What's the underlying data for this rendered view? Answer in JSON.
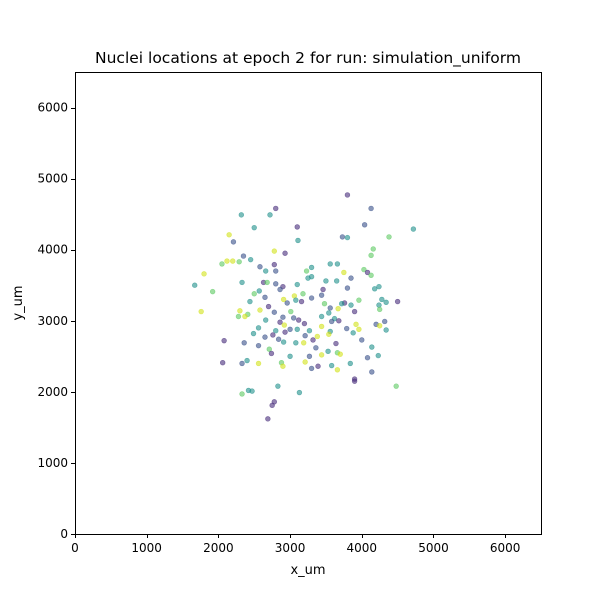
{
  "chart_data": {
    "type": "scatter",
    "title": "Nuclei locations at epoch 2 for run: simulation_uniform",
    "xlabel": "x_um",
    "ylabel": "y_um",
    "xlim": [
      0,
      6500
    ],
    "ylim": [
      0,
      6500
    ],
    "xticks": [
      0,
      1000,
      2000,
      3000,
      4000,
      5000,
      6000
    ],
    "yticks": [
      0,
      1000,
      2000,
      3000,
      4000,
      5000,
      6000
    ],
    "xtick_labels": [
      "0",
      "1000",
      "2000",
      "3000",
      "4000",
      "5000",
      "6000"
    ],
    "ytick_labels": [
      "0",
      "1000",
      "2000",
      "3000",
      "4000",
      "5000",
      "6000"
    ],
    "grid": false,
    "legend": "none",
    "marker_alpha": 0.6,
    "palette": {
      "purple": "#472d7b",
      "blue": "#3b528b",
      "teal": "#21918c",
      "green": "#5ec962",
      "yellow": "#d2e21b"
    },
    "points": [
      {
        "x": 3800,
        "y": 4770,
        "c": "purple"
      },
      {
        "x": 2800,
        "y": 4580,
        "c": "purple"
      },
      {
        "x": 4130,
        "y": 4580,
        "c": "blue"
      },
      {
        "x": 2320,
        "y": 4490,
        "c": "teal"
      },
      {
        "x": 2720,
        "y": 4490,
        "c": "teal"
      },
      {
        "x": 4040,
        "y": 4350,
        "c": "blue"
      },
      {
        "x": 3100,
        "y": 4320,
        "c": "purple"
      },
      {
        "x": 2500,
        "y": 4310,
        "c": "teal"
      },
      {
        "x": 4720,
        "y": 4290,
        "c": "teal"
      },
      {
        "x": 3730,
        "y": 4180,
        "c": "blue"
      },
      {
        "x": 2150,
        "y": 4210,
        "c": "yellow"
      },
      {
        "x": 3800,
        "y": 4170,
        "c": "teal"
      },
      {
        "x": 4380,
        "y": 4180,
        "c": "green"
      },
      {
        "x": 2210,
        "y": 4110,
        "c": "blue"
      },
      {
        "x": 3110,
        "y": 4130,
        "c": "teal"
      },
      {
        "x": 4160,
        "y": 4010,
        "c": "green"
      },
      {
        "x": 2780,
        "y": 3980,
        "c": "yellow"
      },
      {
        "x": 2930,
        "y": 3950,
        "c": "purple"
      },
      {
        "x": 4130,
        "y": 3920,
        "c": "green"
      },
      {
        "x": 2350,
        "y": 3910,
        "c": "blue"
      },
      {
        "x": 2450,
        "y": 3860,
        "c": "teal"
      },
      {
        "x": 2120,
        "y": 3840,
        "c": "yellow"
      },
      {
        "x": 2200,
        "y": 3840,
        "c": "yellow"
      },
      {
        "x": 2290,
        "y": 3830,
        "c": "green"
      },
      {
        "x": 3560,
        "y": 3800,
        "c": "teal"
      },
      {
        "x": 3660,
        "y": 3800,
        "c": "teal"
      },
      {
        "x": 2050,
        "y": 3800,
        "c": "green"
      },
      {
        "x": 2780,
        "y": 3790,
        "c": "purple"
      },
      {
        "x": 2580,
        "y": 3760,
        "c": "blue"
      },
      {
        "x": 3300,
        "y": 3750,
        "c": "teal"
      },
      {
        "x": 4030,
        "y": 3720,
        "c": "green"
      },
      {
        "x": 2800,
        "y": 3700,
        "c": "blue"
      },
      {
        "x": 2660,
        "y": 3700,
        "c": "teal"
      },
      {
        "x": 4080,
        "y": 3680,
        "c": "purple"
      },
      {
        "x": 3230,
        "y": 3700,
        "c": "green"
      },
      {
        "x": 3750,
        "y": 3680,
        "c": "yellow"
      },
      {
        "x": 4130,
        "y": 3640,
        "c": "green"
      },
      {
        "x": 1800,
        "y": 3660,
        "c": "yellow"
      },
      {
        "x": 3300,
        "y": 3620,
        "c": "teal"
      },
      {
        "x": 3850,
        "y": 3600,
        "c": "blue"
      },
      {
        "x": 3250,
        "y": 3600,
        "c": "teal"
      },
      {
        "x": 3500,
        "y": 3560,
        "c": "teal"
      },
      {
        "x": 3650,
        "y": 3560,
        "c": "teal"
      },
      {
        "x": 2630,
        "y": 3540,
        "c": "purple"
      },
      {
        "x": 2330,
        "y": 3540,
        "c": "teal"
      },
      {
        "x": 3100,
        "y": 3510,
        "c": "teal"
      },
      {
        "x": 2800,
        "y": 3520,
        "c": "blue"
      },
      {
        "x": 2680,
        "y": 3540,
        "c": "green"
      },
      {
        "x": 1670,
        "y": 3500,
        "c": "teal"
      },
      {
        "x": 4240,
        "y": 3480,
        "c": "teal"
      },
      {
        "x": 2900,
        "y": 3480,
        "c": "purple"
      },
      {
        "x": 3800,
        "y": 3460,
        "c": "blue"
      },
      {
        "x": 4180,
        "y": 3450,
        "c": "teal"
      },
      {
        "x": 2860,
        "y": 3440,
        "c": "blue"
      },
      {
        "x": 3460,
        "y": 3440,
        "c": "purple"
      },
      {
        "x": 2570,
        "y": 3420,
        "c": "teal"
      },
      {
        "x": 1920,
        "y": 3410,
        "c": "green"
      },
      {
        "x": 2500,
        "y": 3380,
        "c": "green"
      },
      {
        "x": 3180,
        "y": 3380,
        "c": "green"
      },
      {
        "x": 3440,
        "y": 3360,
        "c": "blue"
      },
      {
        "x": 3060,
        "y": 3350,
        "c": "yellow"
      },
      {
        "x": 2650,
        "y": 3330,
        "c": "blue"
      },
      {
        "x": 3300,
        "y": 3320,
        "c": "blue"
      },
      {
        "x": 2910,
        "y": 3300,
        "c": "yellow"
      },
      {
        "x": 3080,
        "y": 3290,
        "c": "teal"
      },
      {
        "x": 4280,
        "y": 3300,
        "c": "teal"
      },
      {
        "x": 3960,
        "y": 3290,
        "c": "green"
      },
      {
        "x": 4500,
        "y": 3270,
        "c": "purple"
      },
      {
        "x": 3160,
        "y": 3270,
        "c": "purple"
      },
      {
        "x": 2440,
        "y": 3270,
        "c": "teal"
      },
      {
        "x": 4340,
        "y": 3260,
        "c": "teal"
      },
      {
        "x": 3760,
        "y": 3250,
        "c": "purple"
      },
      {
        "x": 3480,
        "y": 3240,
        "c": "green"
      },
      {
        "x": 3720,
        "y": 3240,
        "c": "teal"
      },
      {
        "x": 2960,
        "y": 3250,
        "c": "blue"
      },
      {
        "x": 3850,
        "y": 3220,
        "c": "teal"
      },
      {
        "x": 4240,
        "y": 3220,
        "c": "teal"
      },
      {
        "x": 2700,
        "y": 3200,
        "c": "purple"
      },
      {
        "x": 3560,
        "y": 3180,
        "c": "blue"
      },
      {
        "x": 3670,
        "y": 3170,
        "c": "yellow"
      },
      {
        "x": 4250,
        "y": 3160,
        "c": "green"
      },
      {
        "x": 2580,
        "y": 3150,
        "c": "yellow"
      },
      {
        "x": 1760,
        "y": 3130,
        "c": "yellow"
      },
      {
        "x": 2300,
        "y": 3140,
        "c": "yellow"
      },
      {
        "x": 3010,
        "y": 3130,
        "c": "green"
      },
      {
        "x": 3900,
        "y": 3130,
        "c": "purple"
      },
      {
        "x": 2780,
        "y": 3120,
        "c": "blue"
      },
      {
        "x": 3540,
        "y": 3110,
        "c": "teal"
      },
      {
        "x": 2410,
        "y": 3090,
        "c": "green"
      },
      {
        "x": 2370,
        "y": 3060,
        "c": "yellow"
      },
      {
        "x": 3440,
        "y": 3060,
        "c": "teal"
      },
      {
        "x": 2280,
        "y": 3060,
        "c": "green"
      },
      {
        "x": 2900,
        "y": 3050,
        "c": "blue"
      },
      {
        "x": 3050,
        "y": 3040,
        "c": "blue"
      },
      {
        "x": 3620,
        "y": 3030,
        "c": "teal"
      },
      {
        "x": 2660,
        "y": 3010,
        "c": "teal"
      },
      {
        "x": 3120,
        "y": 3010,
        "c": "purple"
      },
      {
        "x": 3680,
        "y": 3000,
        "c": "purple"
      },
      {
        "x": 3580,
        "y": 2990,
        "c": "blue"
      },
      {
        "x": 4320,
        "y": 2990,
        "c": "blue"
      },
      {
        "x": 2860,
        "y": 2980,
        "c": "purple"
      },
      {
        "x": 3200,
        "y": 2960,
        "c": "purple"
      },
      {
        "x": 4200,
        "y": 2950,
        "c": "blue"
      },
      {
        "x": 3920,
        "y": 2950,
        "c": "yellow"
      },
      {
        "x": 2920,
        "y": 2940,
        "c": "yellow"
      },
      {
        "x": 4250,
        "y": 2930,
        "c": "yellow"
      },
      {
        "x": 3440,
        "y": 2920,
        "c": "yellow"
      },
      {
        "x": 2560,
        "y": 2900,
        "c": "teal"
      },
      {
        "x": 3790,
        "y": 2890,
        "c": "blue"
      },
      {
        "x": 3000,
        "y": 2880,
        "c": "blue"
      },
      {
        "x": 3100,
        "y": 2880,
        "c": "teal"
      },
      {
        "x": 3960,
        "y": 2880,
        "c": "yellow"
      },
      {
        "x": 4340,
        "y": 2870,
        "c": "teal"
      },
      {
        "x": 2800,
        "y": 2860,
        "c": "teal"
      },
      {
        "x": 3270,
        "y": 2860,
        "c": "teal"
      },
      {
        "x": 3560,
        "y": 2850,
        "c": "teal"
      },
      {
        "x": 2930,
        "y": 2840,
        "c": "purple"
      },
      {
        "x": 3880,
        "y": 2830,
        "c": "teal"
      },
      {
        "x": 2490,
        "y": 2820,
        "c": "teal"
      },
      {
        "x": 3540,
        "y": 2810,
        "c": "yellow"
      },
      {
        "x": 2760,
        "y": 2800,
        "c": "purple"
      },
      {
        "x": 3210,
        "y": 2790,
        "c": "blue"
      },
      {
        "x": 3380,
        "y": 2780,
        "c": "yellow"
      },
      {
        "x": 2650,
        "y": 2770,
        "c": "blue"
      },
      {
        "x": 2080,
        "y": 2720,
        "c": "purple"
      },
      {
        "x": 2840,
        "y": 2740,
        "c": "blue"
      },
      {
        "x": 3320,
        "y": 2730,
        "c": "purple"
      },
      {
        "x": 4000,
        "y": 2730,
        "c": "blue"
      },
      {
        "x": 2910,
        "y": 2700,
        "c": "teal"
      },
      {
        "x": 3190,
        "y": 2690,
        "c": "yellow"
      },
      {
        "x": 3080,
        "y": 2690,
        "c": "teal"
      },
      {
        "x": 2360,
        "y": 2690,
        "c": "blue"
      },
      {
        "x": 3640,
        "y": 2680,
        "c": "purple"
      },
      {
        "x": 2560,
        "y": 2650,
        "c": "blue"
      },
      {
        "x": 3360,
        "y": 2620,
        "c": "blue"
      },
      {
        "x": 4140,
        "y": 2630,
        "c": "teal"
      },
      {
        "x": 2710,
        "y": 2600,
        "c": "green"
      },
      {
        "x": 3530,
        "y": 2570,
        "c": "teal"
      },
      {
        "x": 3660,
        "y": 2550,
        "c": "green"
      },
      {
        "x": 3700,
        "y": 2530,
        "c": "yellow"
      },
      {
        "x": 2740,
        "y": 2540,
        "c": "purple"
      },
      {
        "x": 3440,
        "y": 2520,
        "c": "yellow"
      },
      {
        "x": 3000,
        "y": 2500,
        "c": "teal"
      },
      {
        "x": 3270,
        "y": 2500,
        "c": "blue"
      },
      {
        "x": 4230,
        "y": 2510,
        "c": "teal"
      },
      {
        "x": 2400,
        "y": 2440,
        "c": "teal"
      },
      {
        "x": 4080,
        "y": 2480,
        "c": "blue"
      },
      {
        "x": 2060,
        "y": 2410,
        "c": "purple"
      },
      {
        "x": 2330,
        "y": 2400,
        "c": "blue"
      },
      {
        "x": 3210,
        "y": 2420,
        "c": "yellow"
      },
      {
        "x": 2560,
        "y": 2400,
        "c": "yellow"
      },
      {
        "x": 2880,
        "y": 2410,
        "c": "green"
      },
      {
        "x": 3840,
        "y": 2400,
        "c": "teal"
      },
      {
        "x": 3580,
        "y": 2370,
        "c": "teal"
      },
      {
        "x": 3390,
        "y": 2360,
        "c": "purple"
      },
      {
        "x": 2900,
        "y": 2360,
        "c": "yellow"
      },
      {
        "x": 3300,
        "y": 2330,
        "c": "blue"
      },
      {
        "x": 4140,
        "y": 2280,
        "c": "blue"
      },
      {
        "x": 3660,
        "y": 2310,
        "c": "yellow"
      },
      {
        "x": 3900,
        "y": 2180,
        "c": "purple"
      },
      {
        "x": 3900,
        "y": 2150,
        "c": "purple"
      },
      {
        "x": 2830,
        "y": 2080,
        "c": "teal"
      },
      {
        "x": 4480,
        "y": 2080,
        "c": "green"
      },
      {
        "x": 2420,
        "y": 2020,
        "c": "teal"
      },
      {
        "x": 2330,
        "y": 1970,
        "c": "green"
      },
      {
        "x": 3130,
        "y": 1990,
        "c": "teal"
      },
      {
        "x": 2470,
        "y": 2010,
        "c": "teal"
      },
      {
        "x": 2780,
        "y": 1860,
        "c": "purple"
      },
      {
        "x": 2750,
        "y": 1810,
        "c": "purple"
      },
      {
        "x": 2690,
        "y": 1620,
        "c": "purple"
      }
    ]
  }
}
